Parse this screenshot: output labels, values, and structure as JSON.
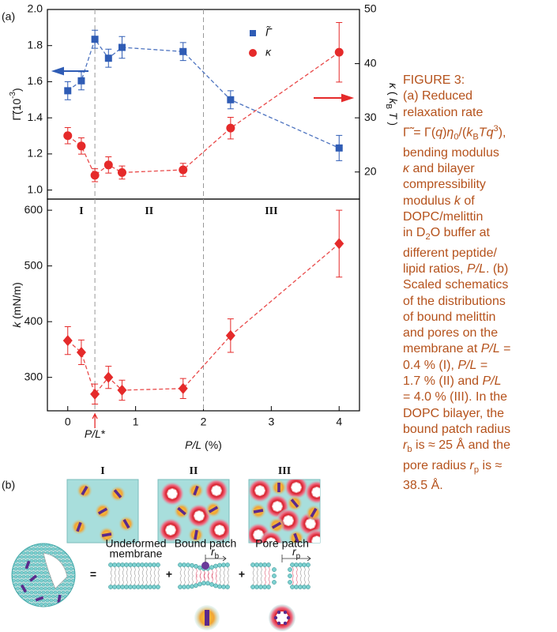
{
  "chart_data": [
    {
      "type": "line",
      "panel_label": "(a)",
      "x": [
        0,
        0.2,
        0.4,
        0.6,
        0.8,
        1.7,
        2.4,
        4
      ],
      "xlim": [
        -0.3,
        4.3
      ],
      "ylim": [
        0.95,
        2.0
      ],
      "y2lim": [
        15,
        50
      ],
      "ylabel": [
        "Γ̃(10",
        {
          "text": "-3",
          "style": "sup"
        },
        ")"
      ],
      "y2label": [
        {
          "text": "κ",
          "style": "i"
        },
        " ( ",
        {
          "text": "k",
          "style": "i"
        },
        {
          "text": "B",
          "style": "sub"
        },
        {
          "text": " T",
          "style": "i"
        },
        " )"
      ],
      "yticks": [
        {
          "value": 1,
          "label": "1.0"
        },
        1.2,
        1.4,
        1.6,
        1.8,
        {
          "value": 2,
          "label": "2.0"
        }
      ],
      "y2ticks": [
        20,
        30,
        40,
        50
      ],
      "vlines": [
        0.4,
        2
      ],
      "legend": "upper right",
      "series": [
        {
          "name": "Γ̃",
          "color": "#2f5cb5",
          "marker": "square",
          "values": [
            1.55,
            1.605,
            1.835,
            1.73,
            1.79,
            1.767,
            1.5,
            1.233
          ],
          "errors": [
            0.05,
            0.05,
            0.05,
            0.05,
            0.06,
            0.05,
            0.05,
            0.07
          ]
        },
        {
          "name": "κ",
          "color": "#e52a2a",
          "marker": "circle",
          "axis": "y2",
          "values": [
            26.7,
            24.8,
            19.4,
            21.3,
            19.9,
            20.4,
            28.1,
            42.1
          ],
          "errors": [
            1.5,
            1.5,
            1.2,
            1.5,
            1.2,
            1.2,
            2.0,
            5.5
          ]
        }
      ]
    },
    {
      "type": "line",
      "x": [
        0,
        0.2,
        0.4,
        0.6,
        0.8,
        1.7,
        2.4,
        4
      ],
      "xlim": [
        -0.3,
        4.3
      ],
      "ylim": [
        240,
        620
      ],
      "xticks": [
        0,
        1,
        2,
        3,
        4
      ],
      "yticks": [
        300,
        400,
        500,
        600
      ],
      "xlabel": [
        {
          "text": "P/L",
          "style": "i"
        },
        " (%)"
      ],
      "ylabel": [
        {
          "text": "k",
          "style": "i"
        },
        " (mN/m)"
      ],
      "vlines": [
        0.4,
        2
      ],
      "region_labels": [
        "I",
        "II",
        "III"
      ],
      "annotation": {
        "text": [
          {
            "text": "P/L",
            "style": "i"
          },
          "*"
        ],
        "x": 0.4
      },
      "series": [
        {
          "color": "#e52a2a",
          "marker": "diamond",
          "values": [
            366,
            345,
            270,
            300,
            277,
            280,
            375,
            540
          ],
          "errors": [
            25,
            22,
            18,
            20,
            18,
            18,
            30,
            60
          ]
        }
      ]
    }
  ],
  "caption": [
    "FIGURE 3:",
    "(a) Reduced",
    "relaxation rate",
    [
      "Γ̃ = Γ(",
      {
        "text": "q",
        "style": "i"
      },
      ")",
      {
        "text": "η",
        "style": "i"
      },
      {
        "text": "0",
        "style": "sub"
      },
      "/(",
      {
        "text": "k",
        "style": "i"
      },
      {
        "text": "B",
        "style": "sub"
      },
      {
        "text": "Tq",
        "style": "i"
      },
      {
        "text": "3",
        "style": "sup"
      },
      "),"
    ],
    "bending modulus",
    [
      {
        "text": "κ",
        "style": "i"
      },
      " and bilayer"
    ],
    "compressibility",
    [
      "modulus ",
      {
        "text": "k",
        "style": "i"
      },
      " of"
    ],
    "DOPC/melittin",
    [
      "in D",
      {
        "text": "2",
        "style": "sub"
      },
      "O buffer at"
    ],
    "different peptide/",
    [
      "lipid ratios, ",
      {
        "text": "P/L",
        "style": "i"
      },
      ". (b)"
    ],
    "Scaled schematics",
    "of the distributions",
    "of bound melittin",
    "and pores on the",
    [
      "membrane at ",
      {
        "text": "P/L",
        "style": "i"
      },
      " ="
    ],
    [
      "0.4 % (I), ",
      {
        "text": "P/L",
        "style": "i"
      },
      " ="
    ],
    [
      "1.7 % (II) and ",
      {
        "text": "P/L",
        "style": "i"
      }
    ],
    "= 4.0 % (III). In the",
    "DOPC bilayer, the",
    "bound patch radius",
    [
      {
        "text": "r",
        "style": "i"
      },
      {
        "text": "b",
        "style": "sub"
      },
      " is ≈ 25 Å and the"
    ],
    [
      "pore radius ",
      {
        "text": "r",
        "style": "i"
      },
      {
        "text": "p",
        "style": "sub"
      },
      " is ≈"
    ],
    "38.5 Å."
  ],
  "schematic": {
    "label": "(b)",
    "panels": [
      "I",
      "II",
      "III"
    ],
    "operators": [
      "=",
      "+",
      "+"
    ],
    "undeformed": [
      "Undeformed",
      "membrane"
    ],
    "bound_patch": "Bound patch",
    "pore_patch": "Pore patch",
    "r_b": [
      {
        "text": "r",
        "style": "i"
      },
      {
        "text": "b",
        "style": "sub"
      }
    ],
    "r_p": [
      {
        "text": "r",
        "style": "i"
      },
      {
        "text": "p",
        "style": "sub"
      }
    ]
  }
}
